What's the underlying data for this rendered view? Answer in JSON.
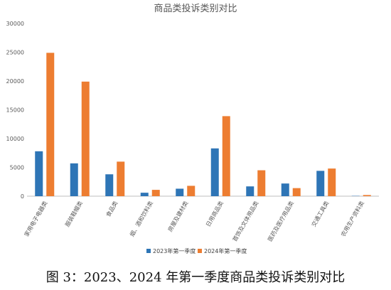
{
  "chart_data": {
    "type": "bar",
    "title": "商品类投诉类别对比",
    "categories": [
      "家用电子电器类",
      "服装鞋帽类",
      "食品类",
      "烟、酒和饮料类",
      "房屋及建材类",
      "日用商品类",
      "首饰及文体用品类",
      "医药及医疗用品类",
      "交通工具类",
      "农用生产资料类"
    ],
    "series": [
      {
        "name": "2023年第一季度",
        "color": "#2E75B6",
        "values": [
          7800,
          5700,
          3800,
          600,
          1300,
          8300,
          1700,
          2200,
          4400,
          50
        ]
      },
      {
        "name": "2024年第一季度",
        "color": "#ED7D31",
        "values": [
          24900,
          19900,
          6000,
          1100,
          1800,
          13900,
          4500,
          1400,
          4800,
          200
        ]
      }
    ],
    "yticks": [
      "0",
      "5000",
      "10000",
      "15000",
      "20000",
      "25000",
      "30000"
    ],
    "ylim": [
      0,
      30000
    ],
    "xlabel": "",
    "ylabel": "",
    "grid": false,
    "legend_position": "bottom"
  },
  "caption": "图 3：2023、2024 年第一季度商品类投诉类别对比"
}
